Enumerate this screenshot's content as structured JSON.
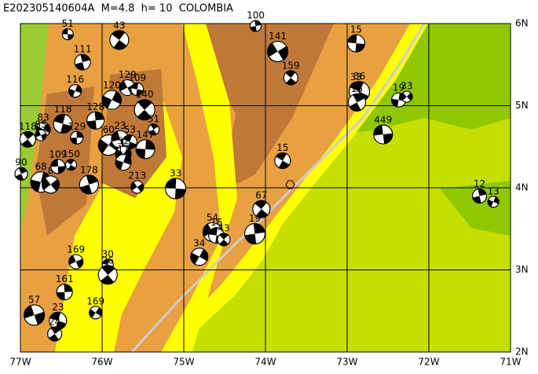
{
  "title": "E202305140604A  M=4.8  h= 10  COLOMBIA",
  "map": {
    "xlim": [
      -77,
      -71
    ],
    "ylim": [
      2,
      6
    ],
    "xticks": [
      {
        "value": -77,
        "label": "77W"
      },
      {
        "value": -76,
        "label": "76W"
      },
      {
        "value": -75,
        "label": "75W"
      },
      {
        "value": -74,
        "label": "74W"
      },
      {
        "value": -73,
        "label": "73W"
      },
      {
        "value": -72,
        "label": "72W"
      },
      {
        "value": -71,
        "label": "71W"
      }
    ],
    "yticks": [
      {
        "value": 2,
        "label": "2N"
      },
      {
        "value": 3,
        "label": "3N"
      },
      {
        "value": 4,
        "label": "4N"
      },
      {
        "value": 5,
        "label": "5N"
      },
      {
        "value": 6,
        "label": "6N"
      }
    ]
  },
  "events": [
    {
      "label": "51",
      "lon": -76.42,
      "lat": 5.87
    },
    {
      "label": "43",
      "lon": -75.79,
      "lat": 5.8
    },
    {
      "label": "111",
      "lon": -76.24,
      "lat": 5.53
    },
    {
      "label": "116",
      "lon": -76.33,
      "lat": 5.18
    },
    {
      "label": "141",
      "lon": -73.85,
      "lat": 5.66
    },
    {
      "label": "15",
      "lon": -72.89,
      "lat": 5.76
    },
    {
      "label": "159",
      "lon": -73.69,
      "lat": 5.34
    },
    {
      "label": "100",
      "lon": -74.12,
      "lat": 5.97
    },
    {
      "label": "120",
      "lon": -75.88,
      "lat": 5.07
    },
    {
      "label": "129",
      "lon": -75.69,
      "lat": 5.22
    },
    {
      "label": "109",
      "lon": -75.57,
      "lat": 5.2
    },
    {
      "label": "140",
      "lon": -75.48,
      "lat": 4.95
    },
    {
      "label": "128",
      "lon": -76.08,
      "lat": 4.82
    },
    {
      "label": "83",
      "lon": -76.72,
      "lat": 4.71
    },
    {
      "label": "85",
      "lon": -76.75,
      "lat": 4.64
    },
    {
      "label": "118",
      "lon": -76.48,
      "lat": 4.78
    },
    {
      "label": "118",
      "lon": -76.91,
      "lat": 4.59
    },
    {
      "label": "129",
      "lon": -76.31,
      "lat": 4.61
    },
    {
      "label": "60",
      "lon": -75.92,
      "lat": 4.52
    },
    {
      "label": "23",
      "lon": -75.78,
      "lat": 4.59
    },
    {
      "label": "53",
      "lon": -75.66,
      "lat": 4.56
    },
    {
      "label": "51",
      "lon": -75.37,
      "lat": 4.71
    },
    {
      "label": "147",
      "lon": -75.47,
      "lat": 4.47
    },
    {
      "label": "52",
      "lon": -75.74,
      "lat": 4.41
    },
    {
      "label": "33",
      "lon": -72.89,
      "lat": 5.21
    },
    {
      "label": "36",
      "lon": -72.85,
      "lat": 5.17
    },
    {
      "label": "15",
      "lon": -72.88,
      "lat": 5.04
    },
    {
      "label": "19",
      "lon": -72.37,
      "lat": 5.07
    },
    {
      "label": "33",
      "lon": -72.27,
      "lat": 5.11
    },
    {
      "label": "449",
      "lon": -72.56,
      "lat": 4.65
    },
    {
      "label": "15",
      "lon": -73.79,
      "lat": 4.33
    },
    {
      "label": "90",
      "lon": -76.99,
      "lat": 4.17
    },
    {
      "label": "68",
      "lon": -76.75,
      "lat": 4.07
    },
    {
      "label": "8",
      "lon": -76.63,
      "lat": 4.04
    },
    {
      "label": "109",
      "lon": -76.54,
      "lat": 4.26
    },
    {
      "label": "150",
      "lon": -76.38,
      "lat": 4.28
    },
    {
      "label": "178",
      "lon": -76.16,
      "lat": 4.04
    },
    {
      "label": "17",
      "lon": -75.74,
      "lat": 4.31
    },
    {
      "label": "213",
      "lon": -75.57,
      "lat": 4.01
    },
    {
      "label": "33",
      "lon": -75.1,
      "lat": 3.99
    },
    {
      "label": "67",
      "lon": -74.05,
      "lat": 3.74
    },
    {
      "label": "12",
      "lon": -71.38,
      "lat": 3.9
    },
    {
      "label": "13",
      "lon": -71.21,
      "lat": 3.83
    },
    {
      "label": "54",
      "lon": -74.65,
      "lat": 3.46
    },
    {
      "label": "16",
      "lon": -74.6,
      "lat": 3.42
    },
    {
      "label": "43",
      "lon": -74.51,
      "lat": 3.37
    },
    {
      "label": "19",
      "lon": -74.13,
      "lat": 3.44
    },
    {
      "label": "34",
      "lon": -74.81,
      "lat": 3.16
    },
    {
      "label": "169",
      "lon": -76.32,
      "lat": 3.1
    },
    {
      "label": "30",
      "lon": -75.93,
      "lat": 3.06
    },
    {
      "label": "26",
      "lon": -75.93,
      "lat": 2.94
    },
    {
      "label": "161",
      "lon": -76.46,
      "lat": 2.73
    },
    {
      "label": "169",
      "lon": -76.08,
      "lat": 2.48
    },
    {
      "label": "57",
      "lon": -76.83,
      "lat": 2.45
    },
    {
      "label": "23",
      "lon": -76.54,
      "lat": 2.38
    },
    {
      "label": "24",
      "lon": -76.58,
      "lat": 2.22
    }
  ]
}
